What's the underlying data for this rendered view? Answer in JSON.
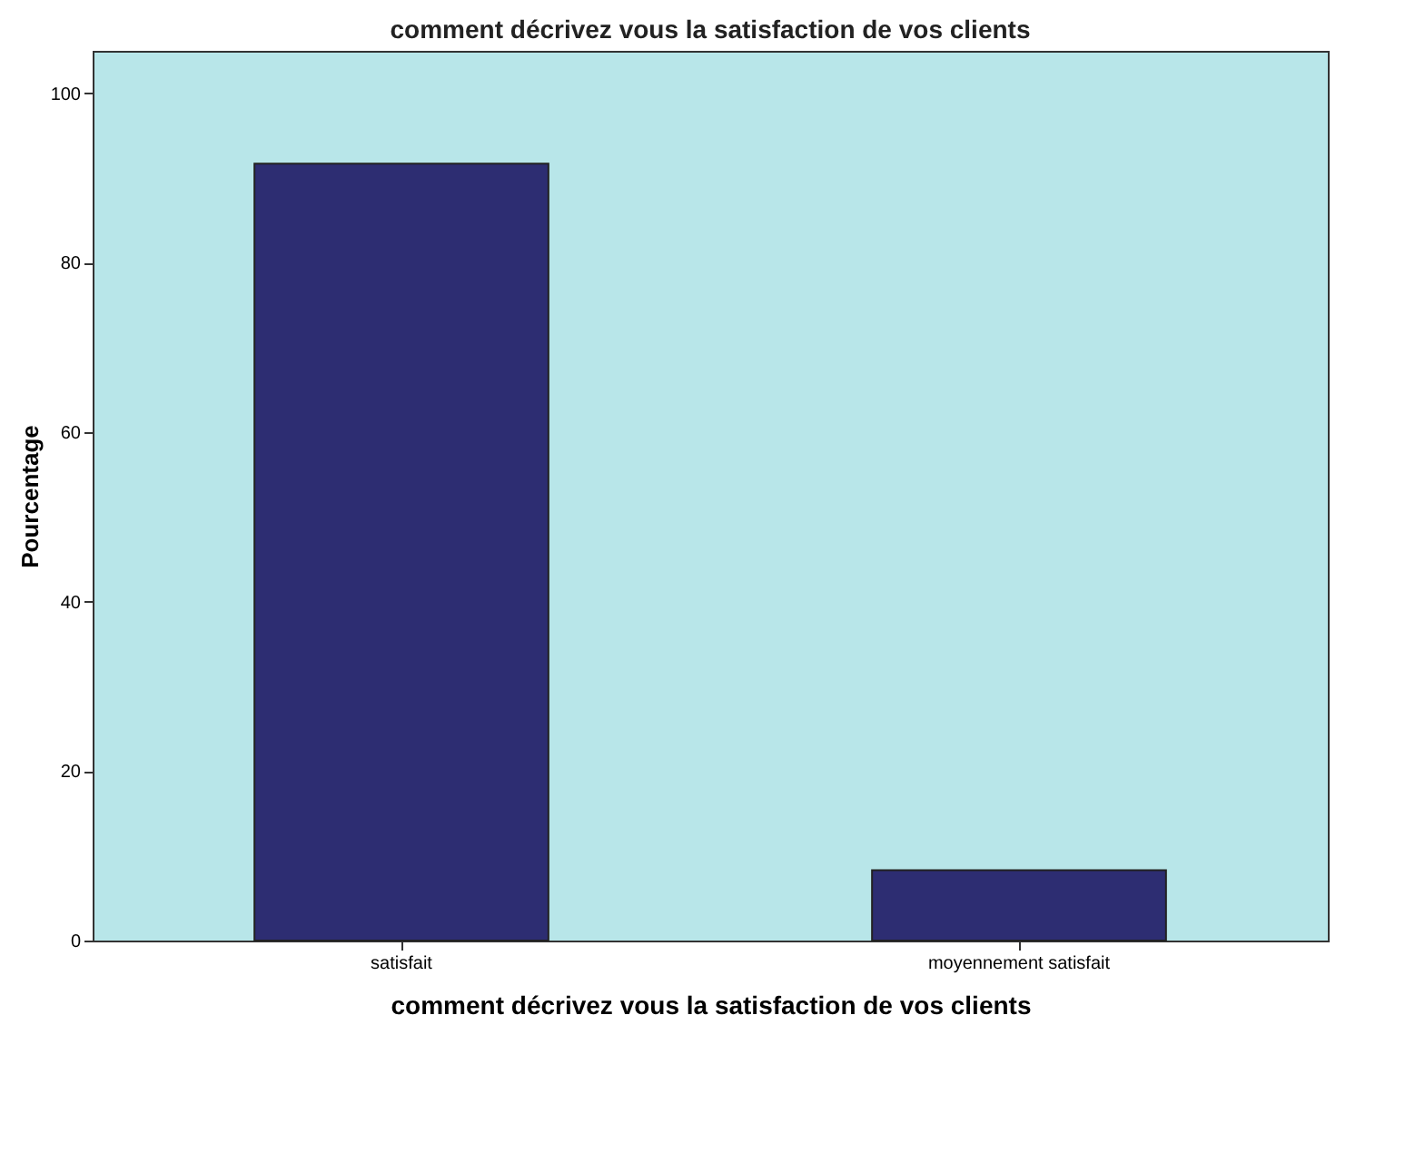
{
  "chart_data": {
    "type": "bar",
    "title": "comment décrivez vous la satisfaction de vos clients",
    "xlabel": "comment décrivez vous la satisfaction de vos clients",
    "ylabel": "Pourcentage",
    "categories": [
      "satisfait",
      "moyennement satisfait"
    ],
    "values": [
      91.7,
      8.3
    ],
    "color": "#2d2d72",
    "ylim": [
      0,
      105
    ],
    "yticks": [
      0,
      20,
      40,
      60,
      80,
      100
    ],
    "grid": false
  }
}
